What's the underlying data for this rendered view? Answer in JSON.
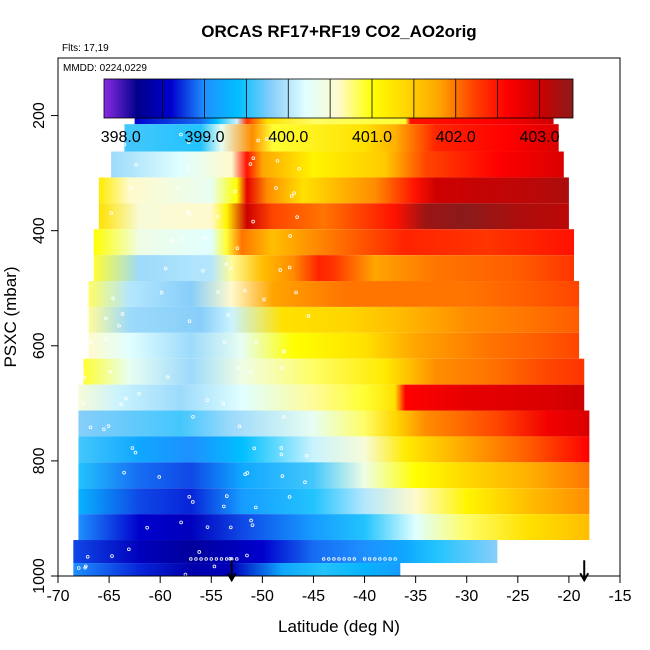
{
  "chart_data": {
    "type": "heatmap",
    "title": "ORCAS RF17+RF19 CO2_AO2orig",
    "flights_label": "Flts: 17,19",
    "date_label": "MMDD: 0224,0229",
    "xlabel": "Latitude (deg N)",
    "ylabel": "PSXC (mbar)",
    "xlim": [
      -70,
      -15
    ],
    "ylim": [
      1000,
      100
    ],
    "x_ticks": [
      -70,
      -65,
      -60,
      -55,
      -50,
      -45,
      -40,
      -35,
      -30,
      -25,
      -20,
      -15
    ],
    "y_ticks": [
      200,
      400,
      600,
      800,
      1000
    ],
    "colorbar": {
      "range": [
        397.8,
        403.4
      ],
      "tick_values": [
        398.0,
        399.0,
        400.0,
        401.0,
        402.0,
        403.0
      ],
      "tick_labels": [
        "398.0",
        "399.0",
        "400.0",
        "401.0",
        "402.0",
        "403.0"
      ],
      "divisions": [
        398.5,
        399.0,
        399.5,
        400.0,
        400.5,
        401.0,
        401.5,
        402.0,
        402.5,
        403.0
      ],
      "colors": [
        "#8a2be2",
        "#00008b",
        "#0000cd",
        "#1e90ff",
        "#00bfff",
        "#87cefa",
        "#e0ffff",
        "#fffacd",
        "#ffff00",
        "#ffd700",
        "#ffa500",
        "#ff4500",
        "#ff0000",
        "#cd0000",
        "#8b1a1a"
      ]
    },
    "layers": [
      {
        "p": 190,
        "lat_range": [
          -62.5,
          -21.5
        ],
        "stops": [
          [
            -62.5,
            398.6
          ],
          [
            -56,
            398.9
          ],
          [
            -54.5,
            399.4
          ],
          [
            -52.5,
            400.1
          ],
          [
            -51.5,
            402.3
          ],
          [
            -49.5,
            401.3
          ],
          [
            -45,
            400.8
          ],
          [
            -36,
            400.9
          ],
          [
            -35.5,
            402.5
          ],
          [
            -28,
            402.6
          ],
          [
            -24,
            402.8
          ],
          [
            -21.5,
            403.0
          ]
        ]
      },
      {
        "p": 240,
        "lat_range": [
          -63.5,
          -21
        ],
        "stops": [
          [
            -63.5,
            399.6
          ],
          [
            -56,
            399.5
          ],
          [
            -54,
            400.3
          ],
          [
            -51,
            401.9
          ],
          [
            -49,
            400.9
          ],
          [
            -40,
            401.3
          ],
          [
            -37,
            401.7
          ],
          [
            -33,
            402.4
          ],
          [
            -26,
            402.6
          ],
          [
            -21,
            402.9
          ]
        ]
      },
      {
        "p": 285,
        "lat_range": [
          -64.8,
          -20.5
        ],
        "stops": [
          [
            -64.8,
            399.9
          ],
          [
            -58,
            400.2
          ],
          [
            -53,
            400.6
          ],
          [
            -51.5,
            402.5
          ],
          [
            -50,
            401.8
          ],
          [
            -45,
            401.1
          ],
          [
            -38,
            401.5
          ],
          [
            -34,
            402.2
          ],
          [
            -27,
            402.6
          ],
          [
            -20.5,
            402.9
          ]
        ]
      },
      {
        "p": 330,
        "lat_range": [
          -66,
          -20
        ],
        "stops": [
          [
            -66,
            401.2
          ],
          [
            -63,
            400.6
          ],
          [
            -55,
            400.3
          ],
          [
            -52.5,
            401.0
          ],
          [
            -51.5,
            402.8
          ],
          [
            -49.5,
            401.9
          ],
          [
            -46,
            401.3
          ],
          [
            -39,
            401.9
          ],
          [
            -35,
            402.5
          ],
          [
            -33,
            403.0
          ],
          [
            -24,
            403.1
          ],
          [
            -20,
            403.2
          ]
        ]
      },
      {
        "p": 375,
        "lat_range": [
          -66,
          -20
        ],
        "stops": [
          [
            -66,
            401.3
          ],
          [
            -62,
            400.5
          ],
          [
            -55,
            400.6
          ],
          [
            -53.5,
            401.1
          ],
          [
            -51.5,
            403.0
          ],
          [
            -49,
            402.2
          ],
          [
            -44,
            402.0
          ],
          [
            -37,
            402.5
          ],
          [
            -34,
            403.3
          ],
          [
            -30,
            403.4
          ],
          [
            -25,
            403.2
          ],
          [
            -20,
            403.1
          ]
        ]
      },
      {
        "p": 420,
        "lat_range": [
          -66.5,
          -19.5
        ],
        "stops": [
          [
            -66.5,
            401.0
          ],
          [
            -62,
            400.4
          ],
          [
            -55,
            400.2
          ],
          [
            -53.5,
            400.9
          ],
          [
            -52,
            402.0
          ],
          [
            -49,
            401.6
          ],
          [
            -43,
            402.0
          ],
          [
            -36,
            402.4
          ],
          [
            -28,
            402.3
          ],
          [
            -19.5,
            402.5
          ]
        ]
      },
      {
        "p": 465,
        "lat_range": [
          -66.5,
          -19.5
        ],
        "stops": [
          [
            -66.5,
            400.9
          ],
          [
            -62,
            399.9
          ],
          [
            -55,
            400.0
          ],
          [
            -53,
            400.7
          ],
          [
            -50,
            401.6
          ],
          [
            -47,
            401.9
          ],
          [
            -44.5,
            402.4
          ],
          [
            -43,
            402.3
          ],
          [
            -39,
            401.8
          ],
          [
            -33,
            402.0
          ],
          [
            -25,
            402.1
          ],
          [
            -19.5,
            402.3
          ]
        ]
      },
      {
        "p": 510,
        "lat_range": [
          -67,
          -19
        ],
        "stops": [
          [
            -67,
            400.8
          ],
          [
            -63,
            400.0
          ],
          [
            -57,
            399.8
          ],
          [
            -53,
            400.6
          ],
          [
            -49,
            401.8
          ],
          [
            -42,
            402.0
          ],
          [
            -36,
            402.0
          ],
          [
            -30,
            402.0
          ],
          [
            -24,
            402.1
          ],
          [
            -19,
            402.2
          ]
        ]
      },
      {
        "p": 555,
        "lat_range": [
          -67,
          -19
        ],
        "stops": [
          [
            -67,
            400.7
          ],
          [
            -63,
            399.9
          ],
          [
            -56,
            399.8
          ],
          [
            -53,
            400.1
          ],
          [
            -48,
            401.3
          ],
          [
            -42,
            401.4
          ],
          [
            -37,
            401.6
          ],
          [
            -30,
            401.9
          ],
          [
            -24,
            402.0
          ],
          [
            -19,
            402.1
          ]
        ]
      },
      {
        "p": 600,
        "lat_range": [
          -67,
          -19
        ],
        "stops": [
          [
            -67,
            400.6
          ],
          [
            -63,
            400.2
          ],
          [
            -57,
            399.9
          ],
          [
            -52,
            400.3
          ],
          [
            -47,
            401.0
          ],
          [
            -40,
            401.3
          ],
          [
            -35,
            401.8
          ],
          [
            -28,
            402.0
          ],
          [
            -23,
            402.1
          ],
          [
            -19,
            402.2
          ]
        ]
      },
      {
        "p": 645,
        "lat_range": [
          -67.5,
          -18.5
        ],
        "stops": [
          [
            -67.5,
            400.9
          ],
          [
            -63,
            400.3
          ],
          [
            -57,
            399.9
          ],
          [
            -52,
            400.4
          ],
          [
            -45,
            400.8
          ],
          [
            -38,
            401.2
          ],
          [
            -33,
            401.9
          ],
          [
            -28,
            402.0
          ],
          [
            -22,
            402.2
          ],
          [
            -18.5,
            402.3
          ]
        ]
      },
      {
        "p": 690,
        "lat_range": [
          -68,
          -18.5
        ],
        "stops": [
          [
            -68,
            400.5
          ],
          [
            -64,
            400.1
          ],
          [
            -58,
            399.9
          ],
          [
            -52,
            400.2
          ],
          [
            -45,
            400.7
          ],
          [
            -40,
            400.9
          ],
          [
            -37,
            401.3
          ],
          [
            -36,
            402.6
          ],
          [
            -30,
            402.8
          ],
          [
            -22,
            402.9
          ],
          [
            -18.5,
            403.0
          ]
        ]
      },
      {
        "p": 735,
        "lat_range": [
          -68,
          -18
        ],
        "stops": [
          [
            -68,
            399.8
          ],
          [
            -63,
            399.7
          ],
          [
            -58,
            399.6
          ],
          [
            -53,
            399.9
          ],
          [
            -45,
            400.3
          ],
          [
            -40,
            400.8
          ],
          [
            -37,
            401.4
          ],
          [
            -34,
            401.9
          ],
          [
            -27,
            402.2
          ],
          [
            -22,
            402.7
          ],
          [
            -18,
            402.9
          ]
        ]
      },
      {
        "p": 780,
        "lat_range": [
          -68,
          -18
        ],
        "stops": [
          [
            -68,
            399.6
          ],
          [
            -62,
            399.2
          ],
          [
            -57,
            399.0
          ],
          [
            -52,
            399.4
          ],
          [
            -45,
            400.1
          ],
          [
            -40,
            400.5
          ],
          [
            -36,
            401.2
          ],
          [
            -30,
            401.8
          ],
          [
            -24,
            402.1
          ],
          [
            -18,
            402.6
          ]
        ]
      },
      {
        "p": 825,
        "lat_range": [
          -68,
          -18
        ],
        "stops": [
          [
            -68,
            399.5
          ],
          [
            -62,
            398.9
          ],
          [
            -57,
            398.8
          ],
          [
            -52,
            399.2
          ],
          [
            -45,
            399.6
          ],
          [
            -40,
            400.4
          ],
          [
            -35,
            401.0
          ],
          [
            -30,
            401.4
          ],
          [
            -24,
            401.7
          ],
          [
            -18,
            402.0
          ]
        ]
      },
      {
        "p": 870,
        "lat_range": [
          -68,
          -18
        ],
        "stops": [
          [
            -68,
            399.3
          ],
          [
            -62,
            398.8
          ],
          [
            -57,
            398.7
          ],
          [
            -52,
            399.1
          ],
          [
            -45,
            399.5
          ],
          [
            -40,
            400.0
          ],
          [
            -35,
            400.6
          ],
          [
            -30,
            401.1
          ],
          [
            -24,
            401.6
          ],
          [
            -18,
            401.9
          ]
        ]
      },
      {
        "p": 915,
        "lat_range": [
          -68,
          -18
        ],
        "stops": [
          [
            -68,
            399.0
          ],
          [
            -62,
            398.6
          ],
          [
            -57,
            398.5
          ],
          [
            -52,
            398.8
          ],
          [
            -45,
            399.1
          ],
          [
            -40,
            399.5
          ],
          [
            -35,
            400.2
          ],
          [
            -30,
            400.8
          ],
          [
            -24,
            401.3
          ],
          [
            -18,
            401.6
          ]
        ]
      },
      {
        "p": 960,
        "lat_range": [
          -68.5,
          -27
        ],
        "stops": [
          [
            -68.5,
            398.8
          ],
          [
            -62,
            398.5
          ],
          [
            -57,
            398.3
          ],
          [
            -50,
            398.6
          ],
          [
            -45,
            398.9
          ],
          [
            -40,
            399.0
          ],
          [
            -36,
            399.2
          ],
          [
            -33,
            399.5
          ],
          [
            -27,
            399.8
          ]
        ]
      },
      {
        "p": 995,
        "lat_range": [
          -68.5,
          -36.5
        ],
        "stops": [
          [
            -68.5,
            399.0
          ],
          [
            -62,
            398.7
          ],
          [
            -57,
            398.4
          ],
          [
            -53,
            398.5
          ],
          [
            -48,
            399.2
          ],
          [
            -44,
            399.5
          ],
          [
            -40,
            399.3
          ],
          [
            -36.5,
            399.1
          ]
        ]
      }
    ],
    "markers": [
      {
        "type": "down-arrow",
        "lat": -53,
        "p": 990
      },
      {
        "type": "down-arrow",
        "lat": -18.5,
        "p": 990
      }
    ]
  }
}
